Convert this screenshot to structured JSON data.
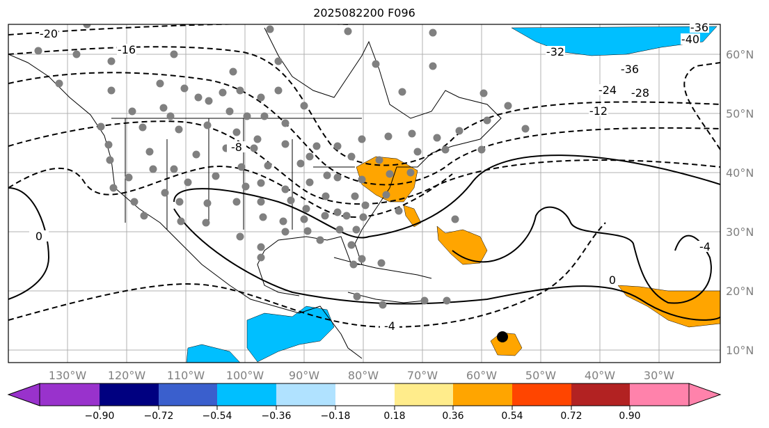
{
  "title": "2025082200 F096",
  "lon_labels": [
    "130°W",
    "120°W",
    "110°W",
    "100°W",
    "90°W",
    "80°W",
    "70°W",
    "60°W",
    "50°W",
    "40°W",
    "30°W"
  ],
  "lat_labels": [
    "60°N",
    "50°N",
    "40°N",
    "30°N",
    "20°N",
    "10°N"
  ],
  "contour_labels": [
    "-20",
    "-16",
    "-36",
    "-40",
    "-32",
    "-36",
    "-24",
    "-28",
    "-12",
    "-8",
    "-4",
    "0",
    "0",
    "-4"
  ],
  "colorbar": {
    "ticks": [
      "−0.90",
      "−0.72",
      "−0.54",
      "−0.36",
      "−0.18",
      "0.18",
      "0.36",
      "0.54",
      "0.72",
      "0.90"
    ],
    "colors": [
      "#9932CC",
      "#000080",
      "#3A5FCD",
      "#00BFFF",
      "#B0E2FF",
      "#FFFFFF",
      "#FFEC8B",
      "#FFA500",
      "#FF4500",
      "#B22222",
      "#FF82AB"
    ]
  }
}
